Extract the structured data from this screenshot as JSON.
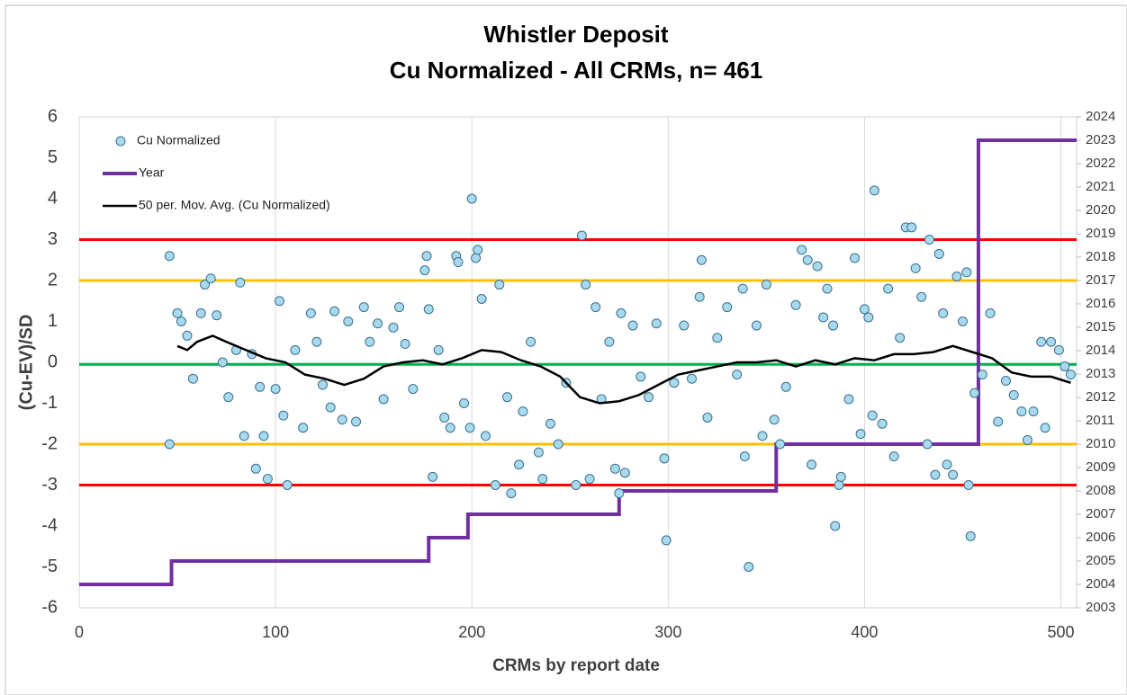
{
  "chart_data": {
    "type": "scatter",
    "title": "Whistler Deposit",
    "subtitle": "Cu Normalized - All CRMs, n= 461",
    "xlabel": "CRMs by report date",
    "ylabel": "(Cu-EV)/SD",
    "xlim": [
      0,
      508
    ],
    "xticks": [
      0,
      100,
      200,
      300,
      400,
      500
    ],
    "ylim": [
      -6,
      6
    ],
    "yticks": [
      -6,
      -5,
      -4,
      -3,
      -2,
      -1,
      0,
      1,
      2,
      3,
      4,
      5,
      6
    ],
    "y2lim": [
      2003,
      2024
    ],
    "y2ticks": [
      2003,
      2004,
      2005,
      2006,
      2007,
      2008,
      2009,
      2010,
      2011,
      2012,
      2013,
      2014,
      2015,
      2016,
      2017,
      2018,
      2019,
      2020,
      2021,
      2022,
      2023,
      2024
    ],
    "grid": "x",
    "legend": "upper left",
    "reference_lines": [
      {
        "value": 3,
        "color": "#ff0000"
      },
      {
        "value": 2,
        "color": "#ffc000"
      },
      {
        "value": -0.05,
        "color": "#00b050"
      },
      {
        "value": -2,
        "color": "#ffc000"
      },
      {
        "value": -3,
        "color": "#ff0000"
      }
    ],
    "series": [
      {
        "name": "Cu Normalized",
        "type": "scatter",
        "color": "#a9d9ec",
        "edgecolor": "#3b6f8f",
        "x": [
          46,
          46,
          50,
          52,
          55,
          58,
          62,
          64,
          67,
          70,
          73,
          76,
          80,
          82,
          84,
          88,
          90,
          92,
          94,
          96,
          100,
          102,
          104,
          106,
          110,
          114,
          118,
          121,
          124,
          128,
          130,
          134,
          137,
          141,
          145,
          148,
          152,
          155,
          160,
          163,
          166,
          170,
          176,
          177,
          178,
          180,
          183,
          186,
          189,
          192,
          193,
          196,
          199,
          200,
          202,
          203,
          205,
          207,
          212,
          214,
          218,
          220,
          224,
          226,
          230,
          234,
          236,
          240,
          244,
          248,
          253,
          256,
          258,
          260,
          263,
          266,
          270,
          273,
          275,
          276,
          278,
          282,
          286,
          290,
          294,
          298,
          299,
          303,
          308,
          312,
          316,
          317,
          320,
          325,
          330,
          335,
          338,
          339,
          341,
          345,
          348,
          350,
          354,
          357,
          360,
          365,
          368,
          371,
          373,
          376,
          379,
          381,
          384,
          385,
          387,
          388,
          392,
          395,
          398,
          400,
          402,
          404,
          405,
          409,
          412,
          415,
          418,
          421,
          424,
          426,
          429,
          432,
          433,
          436,
          438,
          440,
          442,
          445,
          447,
          450,
          452,
          453,
          454,
          456,
          460,
          464,
          468,
          472,
          476,
          480,
          483,
          486,
          490,
          492,
          495,
          499,
          502,
          505
        ],
        "values": [
          2.6,
          -2,
          1.2,
          1.0,
          0.65,
          -0.4,
          1.2,
          1.9,
          2.05,
          1.15,
          0.0,
          -0.85,
          0.3,
          1.95,
          -1.8,
          0.2,
          -2.6,
          -0.6,
          -1.8,
          -2.85,
          -0.65,
          1.5,
          -1.3,
          -3.0,
          0.3,
          -1.6,
          1.2,
          0.5,
          -0.55,
          -1.1,
          1.25,
          -1.4,
          1.0,
          -1.45,
          1.35,
          0.5,
          0.95,
          -0.9,
          0.85,
          1.35,
          0.45,
          -0.65,
          2.25,
          2.6,
          1.3,
          -2.8,
          0.3,
          -1.35,
          -1.6,
          2.6,
          2.45,
          -1.0,
          -1.6,
          4.0,
          2.55,
          2.75,
          1.55,
          -1.8,
          -3.0,
          1.9,
          -0.85,
          -3.2,
          -2.5,
          -1.2,
          0.5,
          -2.2,
          -2.85,
          -1.5,
          -2.0,
          -0.5,
          -3.0,
          3.1,
          1.9,
          -2.85,
          1.35,
          -0.9,
          0.5,
          -2.6,
          -3.2,
          1.2,
          -2.7,
          0.9,
          -0.35,
          -0.85,
          0.95,
          -2.35,
          -4.35,
          -0.5,
          0.9,
          -0.4,
          1.6,
          2.5,
          -1.35,
          0.6,
          1.35,
          -0.3,
          1.8,
          -2.3,
          -5.0,
          0.9,
          -1.8,
          1.9,
          -1.4,
          -2.0,
          -0.6,
          1.4,
          2.75,
          2.5,
          -2.5,
          2.35,
          1.1,
          1.8,
          0.9,
          -4.0,
          -3.0,
          -2.8,
          -0.9,
          2.55,
          -1.75,
          1.3,
          1.1,
          -1.3,
          4.2,
          -1.5,
          1.8,
          -2.3,
          0.6,
          3.3,
          3.3,
          2.3,
          1.6,
          -2.0,
          3.0,
          -2.75,
          2.65,
          1.2,
          -2.5,
          -2.75,
          2.1,
          1.0,
          2.2,
          -3.0,
          -4.25,
          -0.75,
          -0.3,
          1.2,
          -1.45,
          -0.45,
          -0.8,
          -1.2,
          -1.9,
          -1.2,
          0.5,
          -1.6,
          0.5,
          0.3,
          -0.1,
          -0.3
        ]
      },
      {
        "name": "Year",
        "type": "step",
        "axis": "y2",
        "color": "#7030a0",
        "x": [
          0,
          47,
          178,
          198,
          275,
          355,
          458,
          508
        ],
        "values": [
          2004,
          2005,
          2006,
          2007,
          2008,
          2010,
          2023,
          2023
        ]
      },
      {
        "name": "50 per. Mov. Avg. (Cu Normalized)",
        "type": "line",
        "color": "#000000",
        "x": [
          50,
          55,
          60,
          68,
          75,
          85,
          95,
          105,
          115,
          125,
          135,
          145,
          155,
          165,
          175,
          185,
          195,
          205,
          215,
          225,
          235,
          245,
          255,
          265,
          275,
          285,
          295,
          305,
          315,
          325,
          335,
          345,
          355,
          365,
          375,
          385,
          395,
          405,
          415,
          425,
          435,
          445,
          455,
          465,
          475,
          485,
          495,
          505
        ],
        "values": [
          0.4,
          0.3,
          0.5,
          0.65,
          0.5,
          0.3,
          0.1,
          0,
          -0.3,
          -0.4,
          -0.55,
          -0.4,
          -0.1,
          0,
          0.05,
          -0.05,
          0.1,
          0.3,
          0.25,
          0.05,
          -0.1,
          -0.35,
          -0.85,
          -1.0,
          -0.95,
          -0.8,
          -0.55,
          -0.3,
          -0.2,
          -0.1,
          0,
          0,
          0.05,
          -0.1,
          0.05,
          -0.05,
          0.1,
          0.05,
          0.2,
          0.2,
          0.25,
          0.4,
          0.25,
          0.1,
          -0.25,
          -0.35,
          -0.35,
          -0.5
        ]
      }
    ]
  }
}
